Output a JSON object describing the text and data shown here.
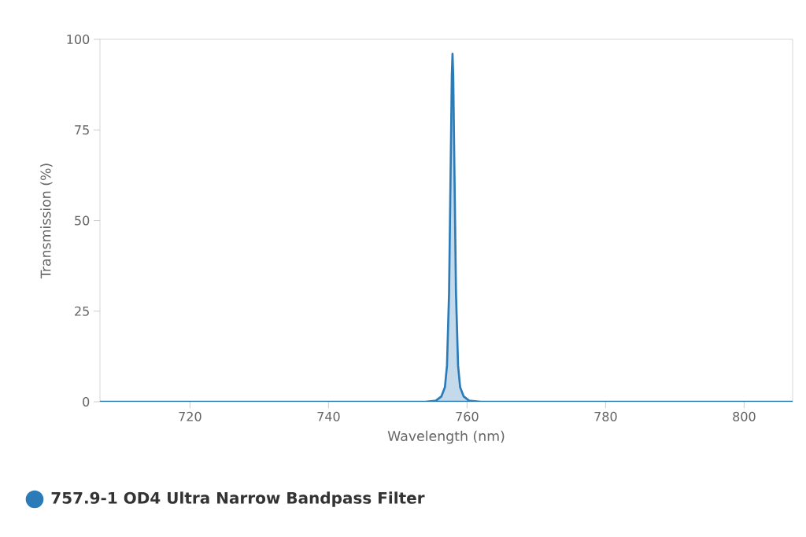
{
  "chart_data": {
    "type": "area",
    "xlabel": "Wavelength (nm)",
    "ylabel": "Transmission (%)",
    "xlim": [
      707,
      807
    ],
    "ylim": [
      0,
      100
    ],
    "xticks": [
      720,
      740,
      760,
      780,
      800
    ],
    "yticks": [
      0,
      25,
      50,
      75,
      100
    ],
    "grid": false,
    "legend": "bottom left",
    "marker": "none",
    "series": [
      {
        "name": "757.9-1 OD4 Ultra Narrow Bandpass Filter",
        "color": "#2b7bb9",
        "x": [
          707,
          754,
          755.5,
          756.3,
          756.8,
          757.1,
          757.4,
          757.6,
          757.8,
          757.9,
          758.0,
          758.2,
          758.4,
          758.7,
          759.0,
          759.5,
          760.3,
          762,
          807
        ],
        "values": [
          0,
          0,
          0.3,
          1.5,
          4,
          10,
          30,
          60,
          90,
          96,
          90,
          60,
          30,
          10,
          4,
          1.5,
          0.3,
          0,
          0
        ]
      }
    ]
  }
}
